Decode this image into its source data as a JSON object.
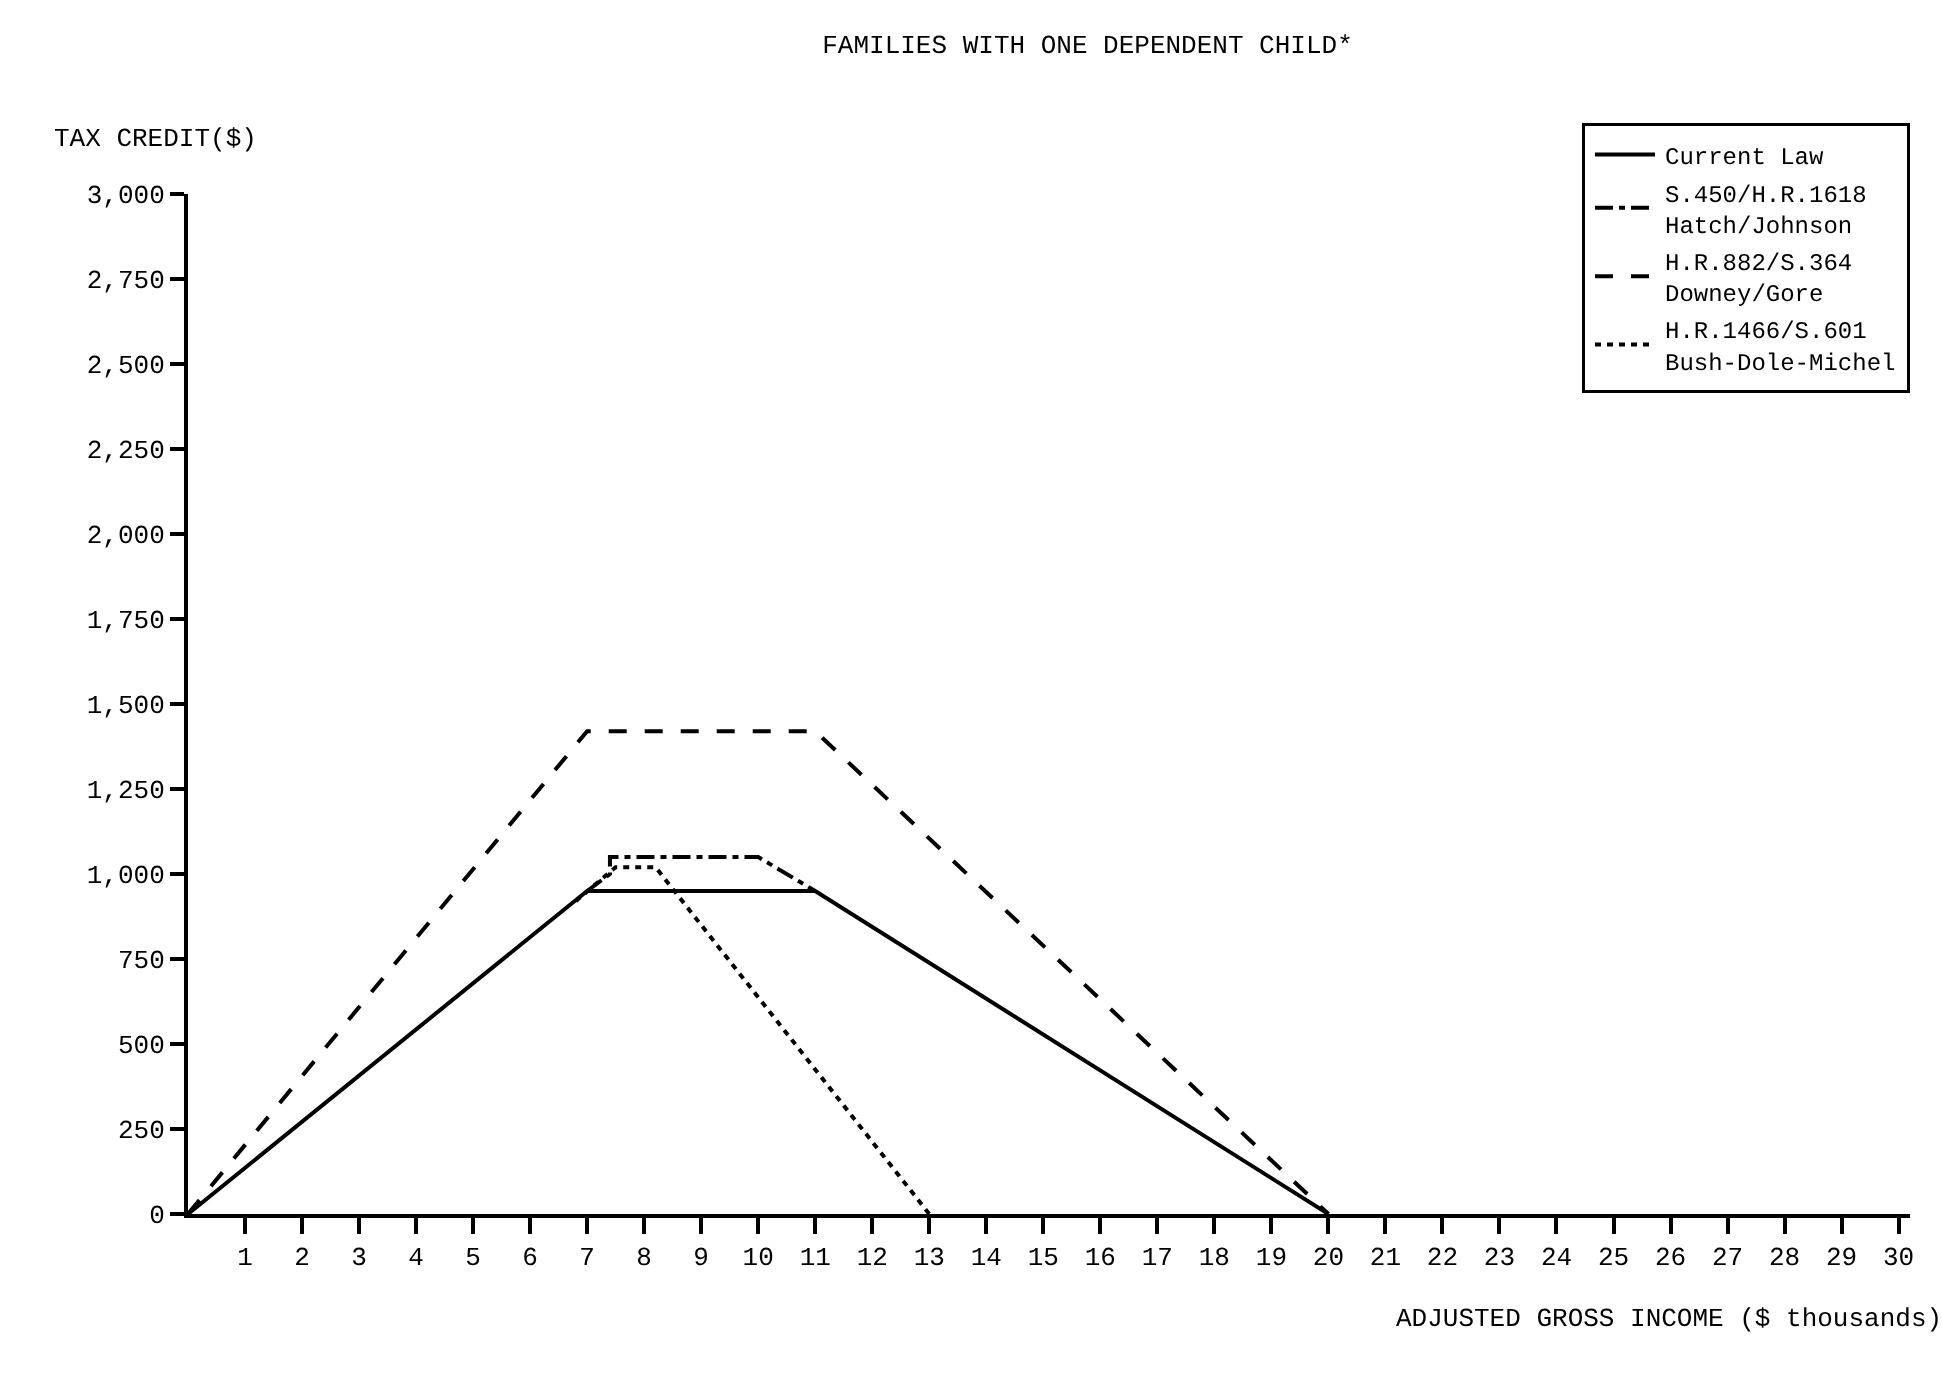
{
  "chart_data": {
    "type": "line",
    "title": "FAMILIES WITH ONE DEPENDENT CHILD*",
    "ylabel": "TAX CREDIT($)",
    "xlabel": "ADJUSTED GROSS INCOME ($ thousands)",
    "xlim": [
      0,
      30.2
    ],
    "xticks": [
      1,
      2,
      3,
      4,
      5,
      6,
      7,
      8,
      9,
      10,
      11,
      12,
      13,
      14,
      15,
      16,
      17,
      18,
      19,
      20,
      21,
      22,
      23,
      24,
      25,
      26,
      27,
      28,
      29,
      30
    ],
    "ylim": [
      0,
      3000
    ],
    "yticks": [
      {
        "value": 0,
        "label": "0"
      },
      {
        "value": 250,
        "label": "250"
      },
      {
        "value": 500,
        "label": "500"
      },
      {
        "value": 750,
        "label": "750"
      },
      {
        "value": 1000,
        "label": "1,000"
      },
      {
        "value": 1250,
        "label": "1,250"
      },
      {
        "value": 1500,
        "label": "1,500"
      },
      {
        "value": 1750,
        "label": "1,750"
      },
      {
        "value": 2000,
        "label": "2,000"
      },
      {
        "value": 2250,
        "label": "2,250"
      },
      {
        "value": 2500,
        "label": "2,500"
      },
      {
        "value": 2750,
        "label": "2,750"
      },
      {
        "value": 3000,
        "label": "3,000"
      }
    ],
    "grid": false,
    "legend": "top right",
    "marker": "none",
    "series": [
      {
        "name": "Current Law",
        "color": "#000000",
        "line_style": "solid",
        "x": [
          0,
          7,
          11,
          20
        ],
        "values": [
          0,
          950,
          950,
          0
        ]
      },
      {
        "name": "S.450/H.R.1618\nHatch/Johnson",
        "color": "#000000",
        "line_style": "dashdot",
        "x": [
          7,
          7.4,
          7.4,
          10,
          11
        ],
        "values": [
          950,
          1000,
          1050,
          1050,
          950
        ]
      },
      {
        "name": "H.R.882/S.364\nDowney/Gore",
        "color": "#000000",
        "line_style": "dashed",
        "x": [
          0,
          7,
          11,
          20
        ],
        "values": [
          0,
          1420,
          1420,
          0
        ]
      },
      {
        "name": "H.R.1466/S.601\nBush-Dole-Michel",
        "color": "#000000",
        "line_style": "dotted",
        "x": [
          6.8,
          7.5,
          8.2,
          13
        ],
        "values": [
          920,
          1020,
          1020,
          0
        ]
      }
    ]
  }
}
